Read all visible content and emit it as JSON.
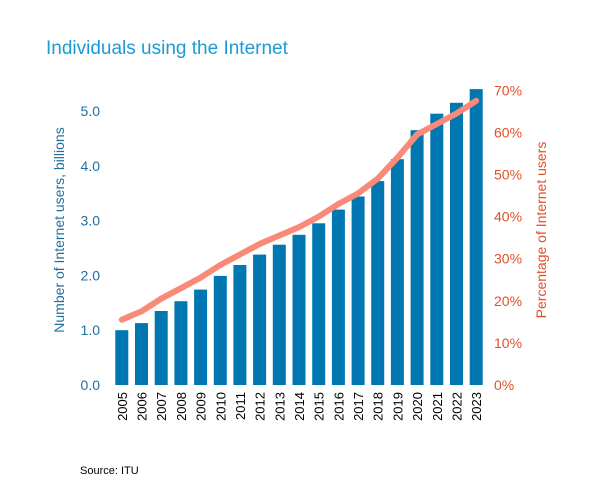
{
  "source_note": "Source: ITU",
  "chart_data": {
    "type": "bar",
    "title": "Individuals using the Internet",
    "categories": [
      "2005",
      "2006",
      "2007",
      "2008",
      "2009",
      "2010",
      "2011",
      "2012",
      "2013",
      "2014",
      "2015",
      "2016",
      "2017",
      "2018",
      "2019",
      "2020",
      "2021",
      "2022",
      "2023"
    ],
    "series": [
      {
        "name": "Number of Internet users, billions",
        "type": "bar",
        "axis": "left",
        "color": "#0077b0",
        "values": [
          1.0,
          1.13,
          1.35,
          1.53,
          1.74,
          1.99,
          2.19,
          2.38,
          2.56,
          2.74,
          2.95,
          3.2,
          3.44,
          3.72,
          4.12,
          4.65,
          4.95,
          5.15,
          5.4
        ]
      },
      {
        "name": "Percentage of Internet users",
        "type": "line",
        "axis": "right",
        "color": "#f98a78",
        "values": [
          15.5,
          17.5,
          20.5,
          23.0,
          25.5,
          28.5,
          31.0,
          33.5,
          35.5,
          37.5,
          40.0,
          43.0,
          45.5,
          49.0,
          54.0,
          59.5,
          62.0,
          64.5,
          67.5
        ]
      }
    ],
    "ylabel": "Number of Internet users, billions",
    "ylabel_right": "Percentage of Internet users",
    "ylim": [
      0,
      5.4
    ],
    "ylim_right": [
      0,
      70
    ],
    "yticks": [
      "0.0",
      "1.0",
      "2.0",
      "3.0",
      "4.0",
      "5.0"
    ],
    "yticks_values": [
      0,
      1,
      2,
      3,
      4,
      5
    ],
    "yticks_right": [
      "0%",
      "10%",
      "20%",
      "30%",
      "40%",
      "50%",
      "60%",
      "70%"
    ],
    "yticks_right_values": [
      0,
      10,
      20,
      30,
      40,
      50,
      60,
      70
    ],
    "grid": false,
    "legend": "none"
  }
}
